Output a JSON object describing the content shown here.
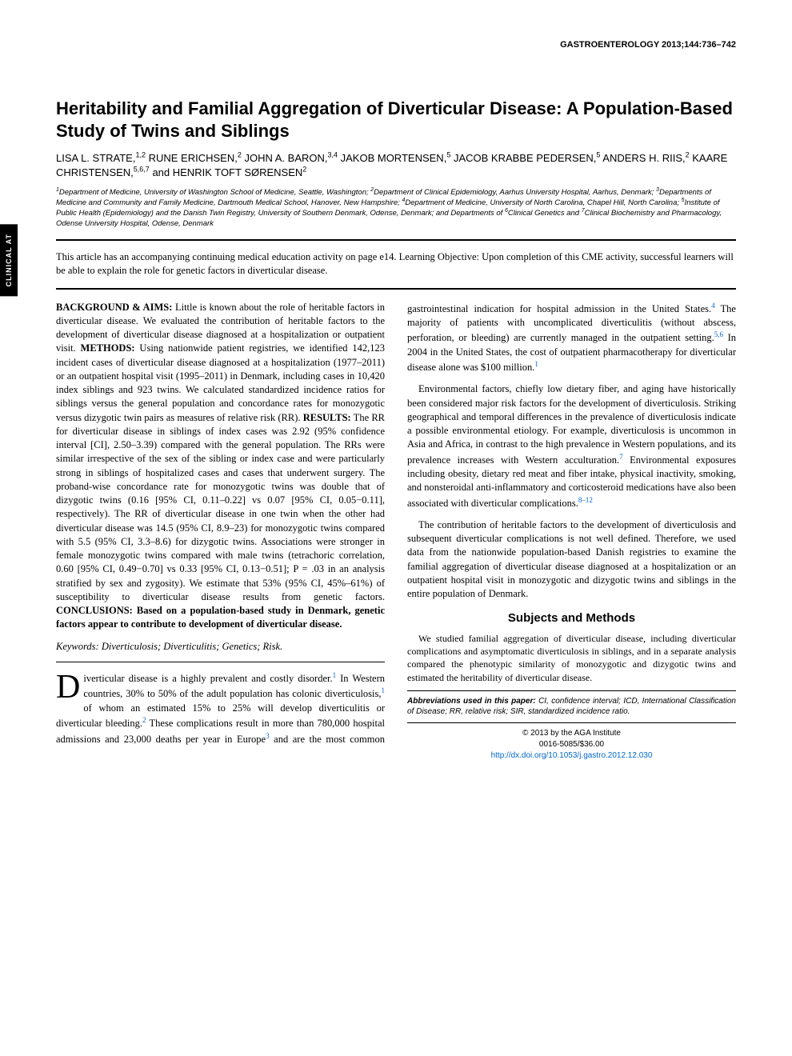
{
  "journal_header": "GASTROENTEROLOGY 2013;144:736–742",
  "side_tab": "CLINICAL AT",
  "title": "Heritability and Familial Aggregation of Diverticular Disease: A Population-Based Study of Twins and Siblings",
  "authors_html": "LISA L. STRATE,<sup>1,2</sup> RUNE ERICHSEN,<sup>2</sup> JOHN A. BARON,<sup>3,4</sup> JAKOB MORTENSEN,<sup>5</sup> JACOB KRABBE PEDERSEN,<sup>5</sup> ANDERS H. RIIS,<sup>2</sup> KAARE CHRISTENSEN,<sup>5,6,7</sup> and HENRIK TOFT SØRENSEN<sup>2</sup>",
  "affiliations_html": "<sup>1</sup>Department of Medicine, University of Washington School of Medicine, Seattle, Washington; <sup>2</sup>Department of Clinical Epidemiology, Aarhus University Hospital, Aarhus, Denmark; <sup>3</sup>Departments of Medicine and Community and Family Medicine, Dartmouth Medical School, Hanover, New Hampshire; <sup>4</sup>Department of Medicine, University of North Carolina, Chapel Hill, North Carolina; <sup>5</sup>Institute of Public Health (Epidemiology) and the Danish Twin Registry, University of Southern Denmark, Odense, Denmark; and Departments of <sup>6</sup>Clinical Genetics and <sup>7</sup>Clinical Biochemistry and Pharmacology, Odense University Hospital, Odense, Denmark",
  "cme_note": "This article has an accompanying continuing medical education activity on page e14. Learning Objective: Upon completion of this CME activity, successful learners will be able to explain the role for genetic factors in diverticular disease.",
  "abstract": {
    "background_label": "BACKGROUND & AIMS:",
    "background": " Little is known about the role of heritable factors in diverticular disease. We evaluated the contribution of heritable factors to the development of diverticular disease diagnosed at a hospitalization or outpatient visit. ",
    "methods_label": "METHODS:",
    "methods": " Using nationwide patient registries, we identified 142,123 incident cases of diverticular disease diagnosed at a hospitalization (1977–2011) or an outpatient hospital visit (1995–2011) in Denmark, including cases in 10,420 index siblings and 923 twins. We calculated standardized incidence ratios for siblings versus the general population and concordance rates for monozygotic versus dizygotic twin pairs as measures of relative risk (RR). ",
    "results_label": "RESULTS:",
    "results": " The RR for diverticular disease in siblings of index cases was 2.92 (95% confidence interval [CI], 2.50–3.39) compared with the general population. The RRs were similar irrespective of the sex of the sibling or index case and were particularly strong in siblings of hospitalized cases and cases that underwent surgery. The proband-wise concordance rate for monozygotic twins was double that of dizygotic twins (0.16 [95% CI, 0.11–0.22] vs 0.07 [95% CI, 0.05−0.11], respectively). The RR of diverticular disease in one twin when the other had diverticular disease was 14.5 (95% CI, 8.9–23) for monozygotic twins compared with 5.5 (95% CI, 3.3–8.6) for dizygotic twins. Associations were stronger in female monozygotic twins compared with male twins (tetrachoric correlation, 0.60 [95% CI, 0.49−0.70] vs 0.33 [95% CI, 0.13−0.51]; P = .03 in an analysis stratified by sex and zygosity). We estimate that 53% (95% CI, 45%–61%) of susceptibility to diverticular disease results from genetic factors. ",
    "conclusions_label": "CONCLUSIONS: Based on a population-based study in Denmark, genetic factors appear to contribute to development of diverticular disease."
  },
  "keywords_label": "Keywords:",
  "keywords": " Diverticulosis; Diverticulitis; Genetics; Risk.",
  "body": {
    "p1_html": "iverticular disease is a highly prevalent and costly disorder.<span class='ref-sup'>1</span> In Western countries, 30% to 50% of the adult population has colonic diverticulosis,<span class='ref-sup'>1</span> of whom an estimated 15% to 25% will develop diverticulitis or diverticular bleeding.<span class='ref-sup'>2</span> These complications result in more than 780,000 hospital admissions and 23,000 deaths per year in Europe<span class='ref-sup'>3</span> and are the most common gastrointestinal indication for hospital admission in the United States.<span class='ref-sup'>4</span> The majority of patients with uncomplicated diverticulitis (without abscess, perforation, or bleeding) are currently managed in the outpatient setting.<span class='ref-sup'>5,6</span> In 2004 in the United States, the cost of outpatient pharmacotherapy for diverticular disease alone was $100 million.<span class='ref-sup'>1</span>",
    "p2_html": "Environmental factors, chiefly low dietary fiber, and aging have historically been considered major risk factors for the development of diverticulosis. Striking geographical and temporal differences in the prevalence of diverticulosis indicate a possible environmental etiology. For example, diverticulosis is uncommon in Asia and Africa, in contrast to the high prevalence in Western populations, and its prevalence increases with Western acculturation.<span class='ref-sup'>7</span> Environmental exposures including obesity, dietary red meat and fiber intake, physical inactivity, smoking, and nonsteroidal anti-inflammatory and corticosteroid medications have also been associated with diverticular complications.<span class='ref-sup'>8–12</span>",
    "p3": "The contribution of heritable factors to the development of diverticulosis and subsequent diverticular complications is not well defined. Therefore, we used data from the nationwide population-based Danish registries to examine the familial aggregation of diverticular disease diagnosed at a hospitalization or an outpatient hospital visit in monozygotic and dizygotic twins and siblings in the entire population of Denmark."
  },
  "section_heading": "Subjects and Methods",
  "methods_para": "We studied familial aggregation of diverticular disease, including diverticular complications and asymptomatic diverticulosis in siblings, and in a separate analysis compared the phenotypic similarity of monozygotic and dizygotic twins and estimated the heritability of diverticular disease.",
  "abbreviations_html": "<b>Abbreviations used in this paper:</b> CI, confidence interval; ICD, International Classification of Disease; RR, relative risk; SIR, standardized incidence ratio.",
  "copyright_line1": "© 2013 by the AGA Institute",
  "copyright_line2": "0016-5085/$36.00",
  "doi": "http://dx.doi.org/10.1053/j.gastro.2012.12.030",
  "colors": {
    "link": "#0066cc",
    "text": "#000000",
    "background": "#ffffff"
  }
}
